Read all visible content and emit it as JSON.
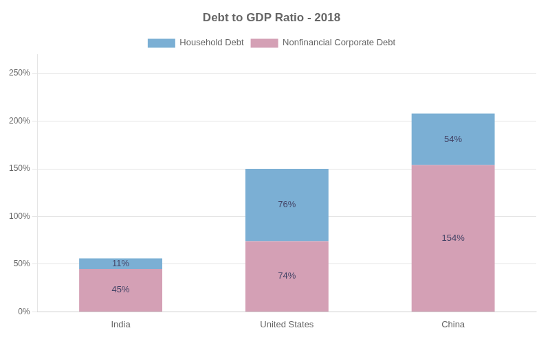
{
  "chart_data": {
    "type": "bar",
    "title": "Debt to GDP Ratio - 2018",
    "categories": [
      "India",
      "United States",
      "China"
    ],
    "series": [
      {
        "name": "Nonfinancial Corporate Debt",
        "color": "#d4a0b5",
        "values": [
          45,
          74,
          154
        ],
        "value_labels": [
          "45%",
          "74%",
          "154%"
        ]
      },
      {
        "name": "Household Debt",
        "color": "#7bafd4",
        "values": [
          11,
          76,
          54
        ],
        "value_labels": [
          "11%",
          "76%",
          "54%"
        ]
      }
    ],
    "stacked": true,
    "data_labels": true,
    "ylim": [
      0,
      270
    ],
    "yticks": [
      {
        "value": 0,
        "label": "0%"
      },
      {
        "value": 50,
        "label": "50%"
      },
      {
        "value": 100,
        "label": "100%"
      },
      {
        "value": 150,
        "label": "150%"
      },
      {
        "value": 200,
        "label": "200%"
      },
      {
        "value": 250,
        "label": "250%"
      }
    ],
    "grid": true,
    "legend": "top"
  }
}
